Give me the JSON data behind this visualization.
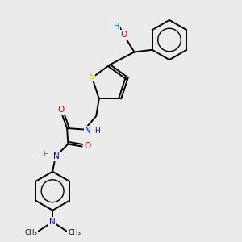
{
  "background_color": "#ebebeb",
  "atom_colors": {
    "C": "#000000",
    "H": "#000000",
    "N": "#0000cc",
    "O": "#cc0000",
    "S": "#cccc00",
    "OH_H": "#008080"
  },
  "figsize": [
    3.0,
    3.0
  ],
  "dpi": 100
}
